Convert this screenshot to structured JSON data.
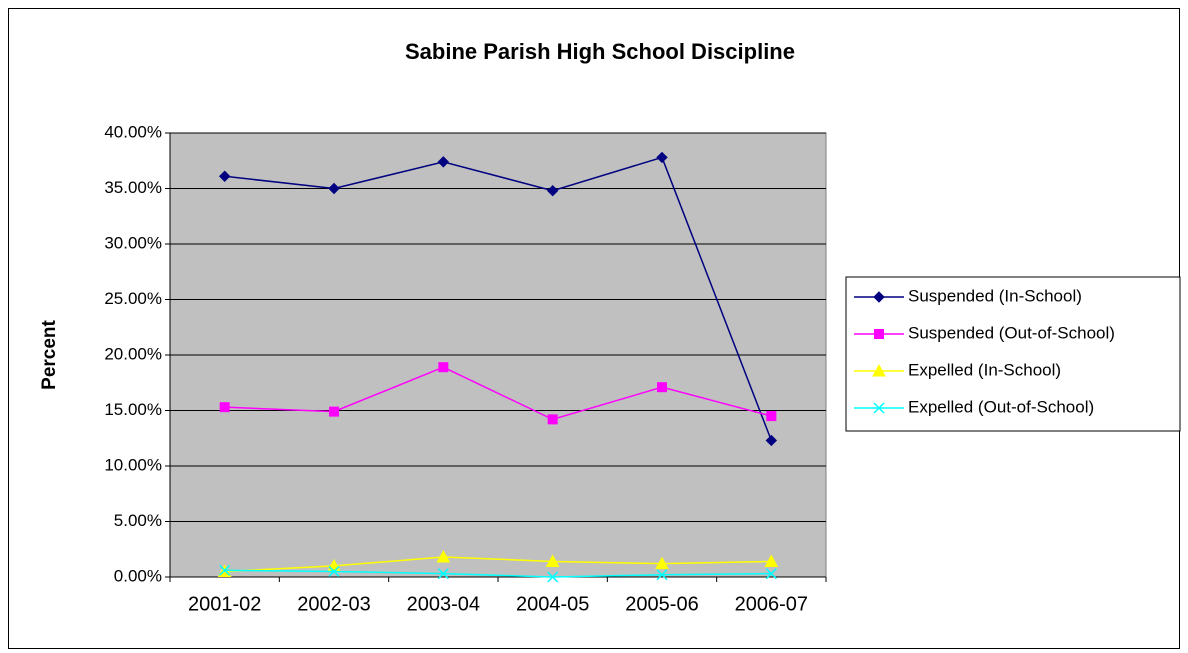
{
  "chart_data": {
    "type": "line",
    "title": "Sabine Parish High School Discipline",
    "y_label": "Percent",
    "categories": [
      "2001-02",
      "2002-03",
      "2003-04",
      "2004-05",
      "2005-06",
      "2006-07"
    ],
    "series": [
      {
        "name": "Suspended (In-School)",
        "color": "#000080",
        "marker": "diamond",
        "values": [
          36.1,
          35.0,
          37.4,
          34.8,
          37.8,
          12.3
        ]
      },
      {
        "name": "Suspended (Out-of-School)",
        "color": "#ff00ff",
        "marker": "square",
        "values": [
          15.3,
          14.9,
          18.9,
          14.2,
          17.1,
          14.5
        ]
      },
      {
        "name": "Expelled (In-School)",
        "color": "#ffff00",
        "marker": "triangle",
        "values": [
          0.5,
          1.0,
          1.8,
          1.4,
          1.2,
          1.4
        ]
      },
      {
        "name": "Expelled (Out-of-School)",
        "color": "#00ffff",
        "marker": "x",
        "values": [
          0.6,
          0.5,
          0.3,
          0.0,
          0.2,
          0.3
        ]
      }
    ],
    "ylim": [
      0,
      40
    ],
    "yticks": [
      {
        "value": 0,
        "label": "0.00%"
      },
      {
        "value": 5,
        "label": "5.00%"
      },
      {
        "value": 10,
        "label": "10.00%"
      },
      {
        "value": 15,
        "label": "15.00%"
      },
      {
        "value": 20,
        "label": "20.00%"
      },
      {
        "value": 25,
        "label": "25.00%"
      },
      {
        "value": 30,
        "label": "30.00%"
      },
      {
        "value": 35,
        "label": "35.00%"
      },
      {
        "value": 40,
        "label": "40.00%"
      }
    ],
    "grid": true,
    "legend": "right",
    "plot_background": "#c0c0c0"
  }
}
